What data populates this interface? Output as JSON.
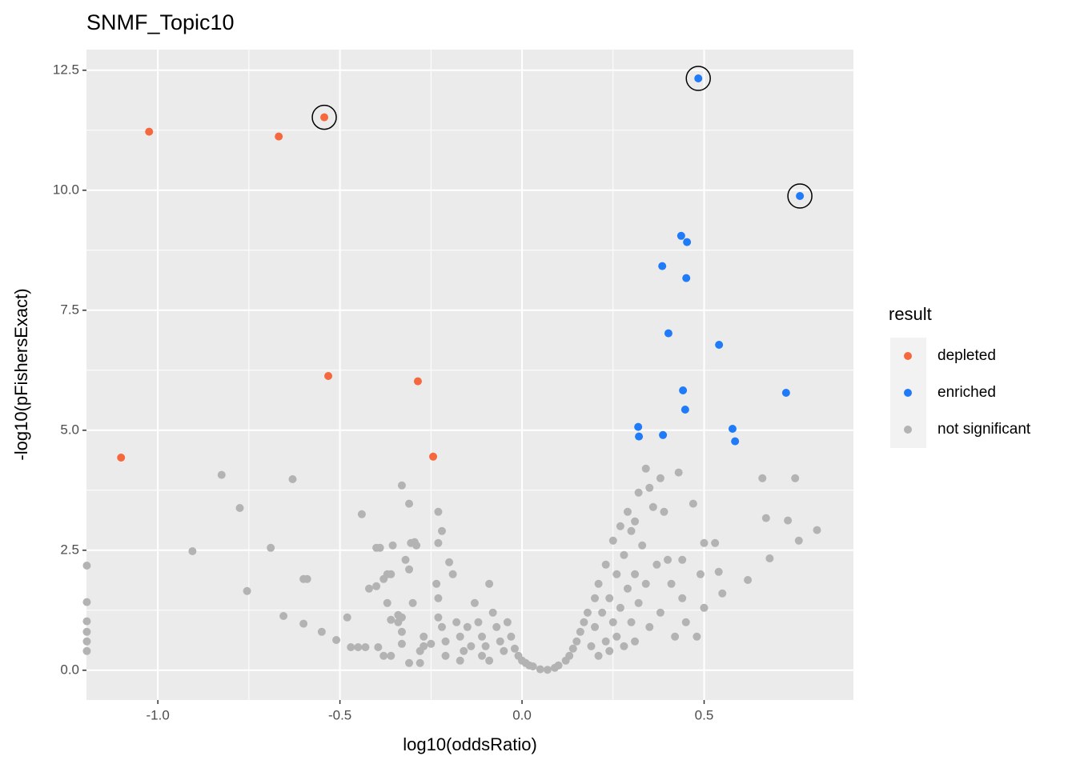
{
  "chart_data": {
    "type": "scatter",
    "title": "SNMF_Topic10",
    "x_label": "log10(oddsRatio)",
    "y_label": "-log10(pFishersExact)",
    "legend_title": "result",
    "legend_position": "right",
    "grid": true,
    "xlim": [
      -1.196,
      0.91
    ],
    "ylim": [
      -0.62,
      12.93
    ],
    "xticks": [
      {
        "value": -1.0,
        "label": "-1.0"
      },
      -0.5,
      {
        "value": 0.0,
        "label": "0.0"
      },
      0.5
    ],
    "yticks": [
      {
        "value": 0.0,
        "label": "0.0"
      },
      2.5,
      {
        "value": 5.0,
        "label": "5.0"
      },
      7.5,
      {
        "value": 10.0,
        "label": "10.0"
      },
      12.5
    ],
    "series": [
      {
        "name": "depleted",
        "color": "#f5683e",
        "x": [
          -1.024,
          -0.668,
          -0.543,
          -0.532,
          -0.286,
          -0.244,
          -1.101
        ],
        "values": [
          11.22,
          11.12,
          11.52,
          6.13,
          6.02,
          4.45,
          4.43
        ],
        "circled": [
          2
        ]
      },
      {
        "name": "enriched",
        "color": "#1f7bf7",
        "x": [
          0.484,
          0.763,
          0.437,
          0.453,
          0.385,
          0.451,
          0.402,
          0.541,
          0.442,
          0.725,
          0.448,
          0.319,
          0.578,
          0.321,
          0.387,
          0.585
        ],
        "values": [
          12.33,
          9.88,
          9.05,
          8.92,
          8.42,
          8.17,
          7.02,
          6.78,
          5.83,
          5.78,
          5.43,
          5.07,
          5.03,
          4.87,
          4.9,
          4.77
        ],
        "circled": [
          0,
          1
        ]
      },
      {
        "name": "not significant",
        "color": "#b3b3b3",
        "x": [
          -1.195,
          -1.195,
          -1.195,
          -1.195,
          -1.195,
          -1.195,
          -0.825,
          -0.775,
          -0.905,
          -0.755,
          -0.63,
          -0.69,
          -0.655,
          -0.6,
          -0.6,
          -0.59,
          -0.55,
          -0.51,
          -0.48,
          -0.47,
          -0.44,
          -0.45,
          -0.43,
          -0.42,
          -0.4,
          -0.39,
          -0.395,
          -0.4,
          -0.38,
          -0.37,
          -0.36,
          -0.37,
          -0.36,
          -0.355,
          -0.38,
          -0.36,
          -0.34,
          -0.33,
          -0.33,
          -0.33,
          -0.32,
          -0.33,
          -0.34,
          -0.31,
          -0.31,
          -0.305,
          -0.295,
          -0.3,
          -0.29,
          -0.31,
          -0.28,
          -0.27,
          -0.27,
          -0.28,
          -0.25,
          -0.23,
          -0.23,
          -0.22,
          -0.235,
          -0.23,
          -0.23,
          -0.22,
          -0.21,
          -0.21,
          -0.2,
          -0.19,
          -0.18,
          -0.17,
          -0.17,
          -0.16,
          -0.15,
          -0.14,
          -0.13,
          -0.12,
          -0.11,
          -0.11,
          -0.1,
          -0.09,
          -0.09,
          -0.08,
          -0.07,
          -0.06,
          -0.05,
          -0.04,
          -0.03,
          -0.02,
          -0.01,
          0.0,
          0.01,
          0.02,
          0.03,
          0.05,
          0.07,
          0.09,
          0.1,
          0.12,
          0.13,
          0.14,
          0.15,
          0.16,
          0.17,
          0.18,
          0.19,
          0.2,
          0.2,
          0.21,
          0.21,
          0.22,
          0.23,
          0.23,
          0.24,
          0.24,
          0.25,
          0.25,
          0.26,
          0.26,
          0.27,
          0.27,
          0.28,
          0.28,
          0.29,
          0.29,
          0.3,
          0.3,
          0.31,
          0.31,
          0.31,
          0.32,
          0.32,
          0.33,
          0.34,
          0.34,
          0.35,
          0.35,
          0.36,
          0.37,
          0.38,
          0.38,
          0.39,
          0.4,
          0.41,
          0.42,
          0.43,
          0.44,
          0.44,
          0.45,
          0.47,
          0.48,
          0.5,
          0.49,
          0.5,
          0.53,
          0.54,
          0.55,
          0.62,
          0.66,
          0.67,
          0.68,
          0.73,
          0.75,
          0.76,
          0.81
        ],
        "values": [
          2.18,
          1.42,
          1.02,
          0.8,
          0.6,
          0.4,
          4.07,
          3.38,
          2.48,
          1.65,
          3.98,
          2.55,
          1.13,
          0.97,
          1.9,
          1.9,
          0.8,
          0.63,
          1.1,
          0.48,
          3.25,
          0.48,
          0.48,
          1.7,
          2.55,
          2.55,
          0.48,
          1.75,
          1.9,
          2.0,
          2.0,
          1.4,
          1.05,
          2.6,
          0.3,
          0.3,
          1.15,
          0.8,
          0.55,
          3.85,
          2.3,
          1.1,
          1.0,
          3.47,
          2.1,
          2.65,
          2.67,
          1.4,
          2.6,
          0.15,
          0.4,
          0.7,
          0.5,
          0.15,
          0.55,
          3.3,
          2.65,
          2.9,
          1.8,
          1.5,
          1.1,
          0.9,
          0.6,
          0.3,
          2.25,
          2.0,
          1.0,
          0.7,
          0.2,
          0.4,
          0.9,
          0.5,
          1.4,
          1.0,
          0.7,
          0.3,
          0.5,
          1.8,
          0.2,
          1.2,
          0.9,
          0.6,
          0.4,
          1.0,
          0.7,
          0.45,
          0.3,
          0.2,
          0.15,
          0.1,
          0.08,
          0.02,
          0.01,
          0.05,
          0.1,
          0.2,
          0.3,
          0.45,
          0.6,
          0.8,
          1.0,
          1.2,
          0.5,
          1.5,
          0.9,
          1.8,
          0.3,
          1.2,
          2.2,
          0.6,
          1.5,
          0.4,
          2.7,
          1.0,
          2.0,
          0.7,
          3.0,
          1.3,
          2.4,
          0.5,
          3.3,
          1.7,
          2.9,
          1.0,
          3.1,
          2.0,
          0.6,
          3.7,
          1.4,
          2.6,
          4.2,
          1.8,
          3.8,
          0.9,
          3.4,
          2.2,
          4.0,
          1.2,
          3.3,
          2.3,
          1.8,
          0.7,
          4.12,
          2.3,
          1.5,
          1.0,
          3.47,
          0.7,
          2.65,
          2.0,
          1.3,
          2.65,
          2.05,
          1.6,
          1.88,
          4.0,
          3.17,
          2.33,
          3.12,
          4.0,
          2.7,
          2.92
        ],
        "circled": []
      }
    ]
  }
}
